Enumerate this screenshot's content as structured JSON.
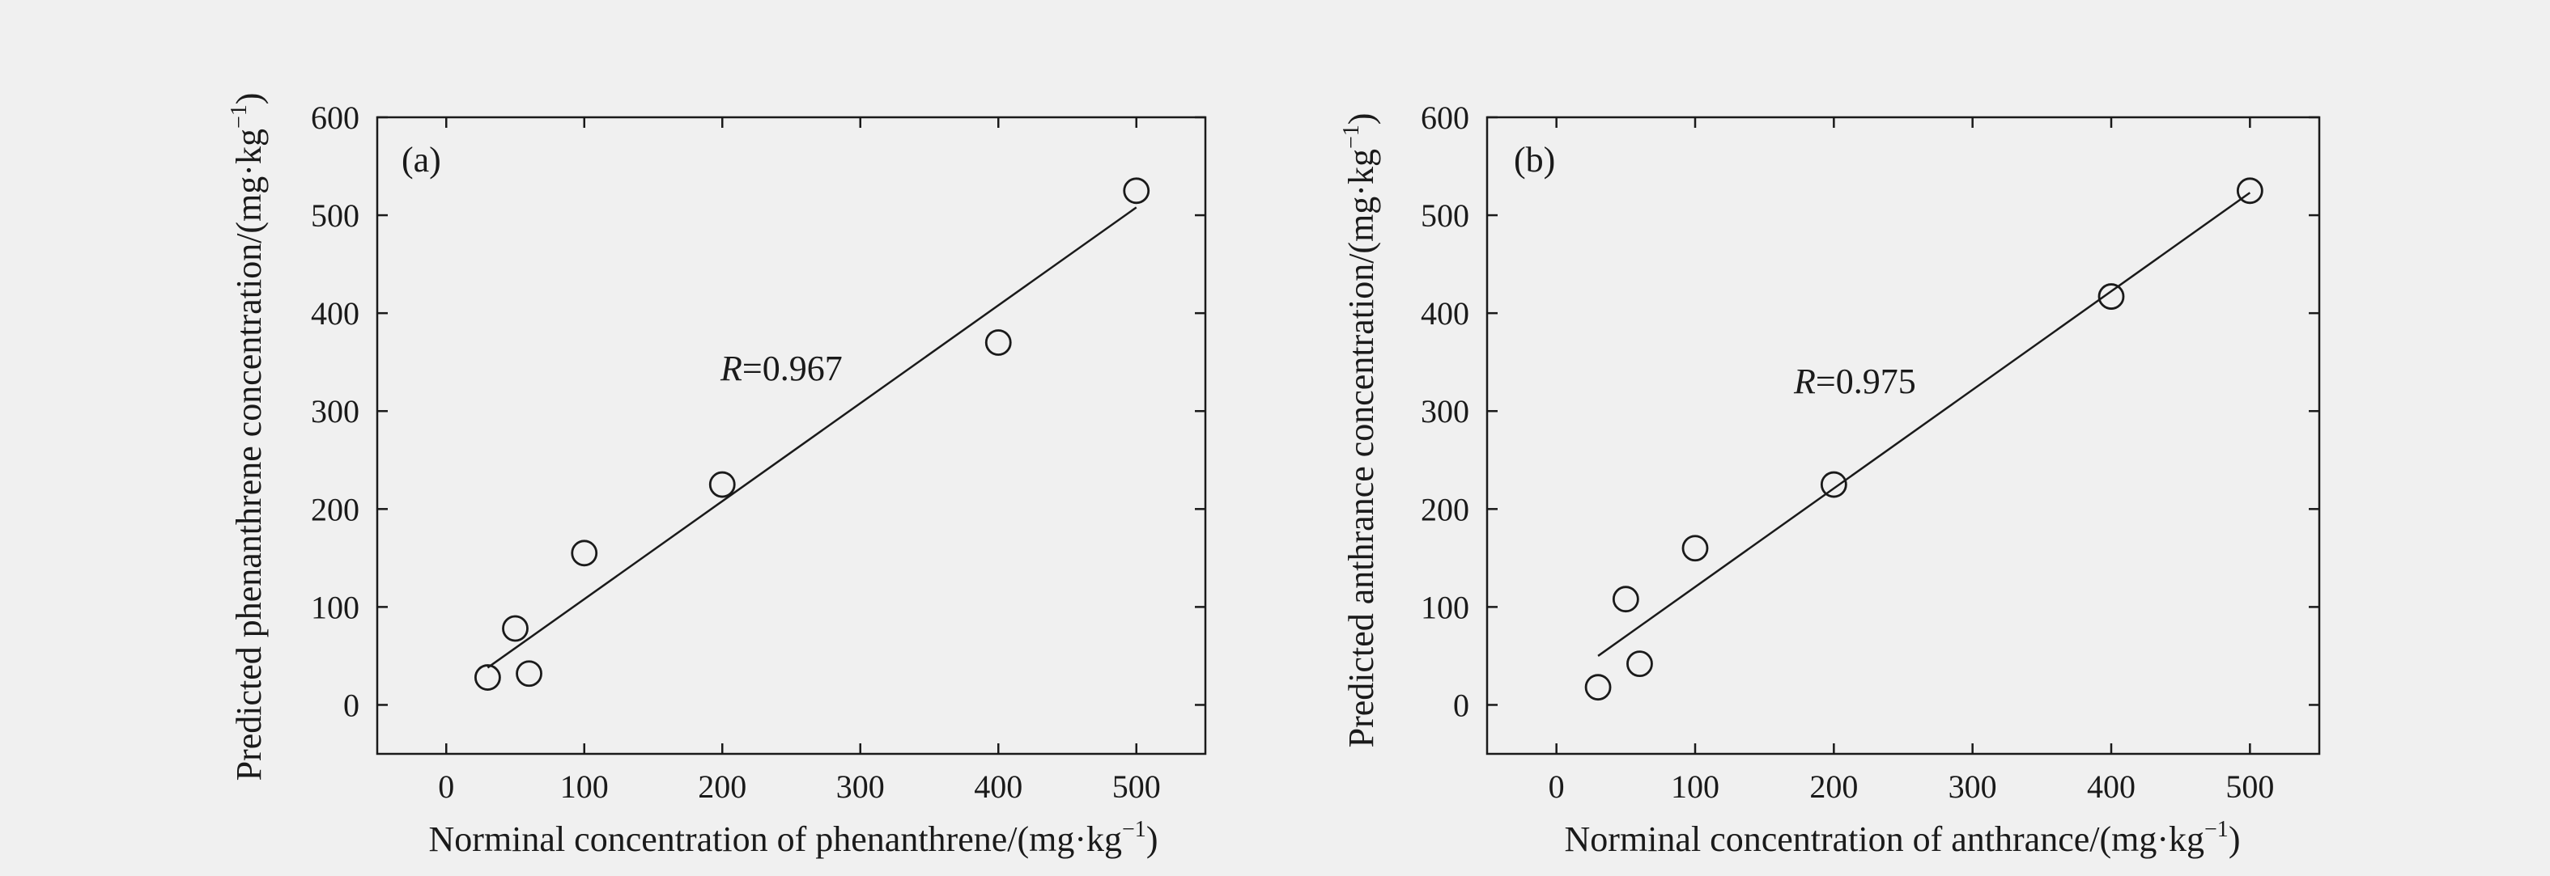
{
  "chart_data": [
    {
      "type": "scatter",
      "panel": "(a)",
      "xlabel": "Norminal concentration of phenanthrene/(mg·kg",
      "xlabel_sup": "−1",
      "xlabel_end": ")",
      "ylabel": "Predicted phenanthrene concentration/(mg·kg",
      "ylabel_sup": "−1",
      "ylabel_end": ")",
      "xlim": [
        -50,
        550
      ],
      "ylim": [
        -50,
        600
      ],
      "xticks": [
        0,
        100,
        200,
        300,
        400,
        500
      ],
      "yticks": [
        0,
        100,
        200,
        300,
        400,
        500,
        600
      ],
      "points": [
        {
          "x": 30,
          "y": 28
        },
        {
          "x": 50,
          "y": 78
        },
        {
          "x": 60,
          "y": 32
        },
        {
          "x": 100,
          "y": 155
        },
        {
          "x": 200,
          "y": 225
        },
        {
          "x": 400,
          "y": 370
        },
        {
          "x": 500,
          "y": 525
        }
      ],
      "fit_line": {
        "x": [
          30,
          500
        ],
        "y": [
          38,
          508
        ]
      },
      "annotation": {
        "italic": "R",
        "text": "=0.967"
      }
    },
    {
      "type": "scatter",
      "panel": "(b)",
      "xlabel": "Norminal concentration of anthrance/(mg·kg",
      "xlabel_sup": "−1",
      "xlabel_end": ")",
      "ylabel": "Predicted anthrance concentration/(mg·kg",
      "ylabel_sup": "−1",
      "ylabel_end": ")",
      "xlim": [
        -50,
        550
      ],
      "ylim": [
        -50,
        600
      ],
      "xticks": [
        0,
        100,
        200,
        300,
        400,
        500
      ],
      "yticks": [
        0,
        100,
        200,
        300,
        400,
        500,
        600
      ],
      "points": [
        {
          "x": 30,
          "y": 18
        },
        {
          "x": 50,
          "y": 108
        },
        {
          "x": 60,
          "y": 42
        },
        {
          "x": 100,
          "y": 160
        },
        {
          "x": 200,
          "y": 225
        },
        {
          "x": 400,
          "y": 417
        },
        {
          "x": 500,
          "y": 525
        }
      ],
      "fit_line": {
        "x": [
          30,
          500
        ],
        "y": [
          50,
          523
        ]
      },
      "annotation": {
        "italic": "R",
        "text": "=0.975"
      }
    }
  ]
}
